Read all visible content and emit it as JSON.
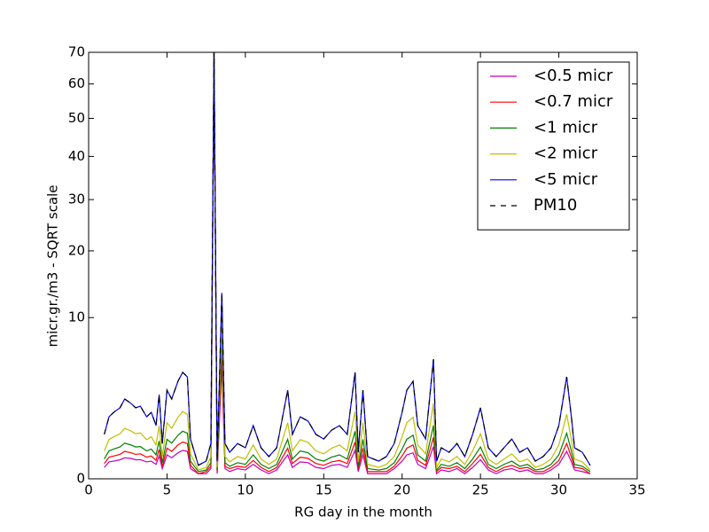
{
  "chart_data": {
    "type": "line",
    "xlabel": "RG day in the month",
    "ylabel": "micr.gr./m3 - SQRT scale",
    "yscale": "sqrt",
    "xlim": [
      0,
      35
    ],
    "xticks": [
      0,
      5,
      10,
      15,
      20,
      25,
      30,
      35
    ],
    "ylim": [
      0,
      70
    ],
    "yticks": [
      0,
      10,
      20,
      30,
      40,
      50,
      60,
      70
    ],
    "legend": "upper right",
    "x": [
      1,
      1.3,
      1.6,
      2,
      2.3,
      2.7,
      3,
      3.3,
      3.7,
      4,
      4.3,
      4.5,
      4.7,
      5,
      5.3,
      5.7,
      6,
      6.3,
      6.5,
      7,
      7.5,
      7.8,
      8,
      8.2,
      8.5,
      8.7,
      9,
      9.5,
      10,
      10.5,
      11,
      11.5,
      12,
      12.7,
      13,
      13.5,
      14,
      14.5,
      15,
      15.5,
      16,
      16.5,
      17,
      17.2,
      17.5,
      17.8,
      18.5,
      19,
      19.5,
      20,
      20.3,
      20.7,
      21,
      21.5,
      22,
      22.2,
      22.5,
      23,
      23.5,
      24,
      24.5,
      25,
      25.5,
      26,
      26.5,
      27,
      27.5,
      28,
      28.5,
      29,
      29.5,
      30,
      30.5,
      30.8,
      31,
      31.5,
      32
    ],
    "series": [
      {
        "name": "<0.5 micr",
        "color": "#bf00bf",
        "linestyle": "solid",
        "values": [
          0.05,
          0.11,
          0.12,
          0.14,
          0.17,
          0.16,
          0.14,
          0.14,
          0.11,
          0.12,
          0.08,
          0.2,
          0.04,
          0.22,
          0.17,
          0.26,
          0.31,
          0.29,
          0.04,
          0.01,
          0.01,
          0.04,
          70,
          0.01,
          5,
          0.04,
          0.02,
          0.04,
          0.03,
          0.08,
          0.03,
          0.01,
          0.03,
          0.22,
          0.05,
          0.11,
          0.1,
          0.05,
          0.04,
          0.07,
          0.08,
          0.05,
          0.31,
          0.02,
          0.22,
          0.01,
          0.01,
          0.01,
          0.04,
          0.12,
          0.22,
          0.26,
          0.08,
          0.04,
          0.4,
          0.01,
          0.03,
          0.02,
          0.04,
          0.01,
          0.05,
          0.14,
          0.03,
          0.01,
          0.03,
          0.04,
          0.02,
          0.03,
          0.01,
          0.01,
          0.03,
          0.08,
          0.29,
          0.11,
          0.03,
          0.02,
          0.01
        ]
      },
      {
        "name": "<0.7 micr",
        "color": "#ff0000",
        "linestyle": "solid",
        "values": [
          0.09,
          0.18,
          0.2,
          0.23,
          0.29,
          0.26,
          0.23,
          0.24,
          0.18,
          0.2,
          0.13,
          0.33,
          0.06,
          0.36,
          0.29,
          0.44,
          0.52,
          0.48,
          0.07,
          0.01,
          0.02,
          0.06,
          70,
          0.02,
          6,
          0.06,
          0.04,
          0.06,
          0.05,
          0.13,
          0.05,
          0.02,
          0.05,
          0.36,
          0.09,
          0.18,
          0.16,
          0.09,
          0.07,
          0.11,
          0.13,
          0.09,
          0.52,
          0.04,
          0.36,
          0.02,
          0.02,
          0.02,
          0.06,
          0.2,
          0.36,
          0.44,
          0.13,
          0.07,
          0.66,
          0.02,
          0.05,
          0.04,
          0.06,
          0.02,
          0.09,
          0.23,
          0.05,
          0.02,
          0.05,
          0.07,
          0.04,
          0.05,
          0.02,
          0.02,
          0.05,
          0.13,
          0.48,
          0.18,
          0.05,
          0.04,
          0.01
        ]
      },
      {
        "name": "<1 micr",
        "color": "#008000",
        "linestyle": "solid",
        "values": [
          0.15,
          0.3,
          0.34,
          0.39,
          0.49,
          0.44,
          0.39,
          0.4,
          0.3,
          0.34,
          0.22,
          0.55,
          0.1,
          0.6,
          0.49,
          0.73,
          0.87,
          0.8,
          0.12,
          0.02,
          0.03,
          0.1,
          70,
          0.03,
          8,
          0.1,
          0.06,
          0.1,
          0.08,
          0.22,
          0.08,
          0.04,
          0.08,
          0.6,
          0.15,
          0.3,
          0.26,
          0.15,
          0.12,
          0.18,
          0.22,
          0.15,
          0.87,
          0.06,
          0.6,
          0.04,
          0.03,
          0.04,
          0.1,
          0.34,
          0.6,
          0.73,
          0.22,
          0.12,
          1.1,
          0.03,
          0.08,
          0.06,
          0.1,
          0.04,
          0.15,
          0.39,
          0.08,
          0.04,
          0.08,
          0.12,
          0.06,
          0.08,
          0.03,
          0.04,
          0.08,
          0.22,
          0.8,
          0.3,
          0.08,
          0.06,
          0.02
        ]
      },
      {
        "name": "<2 micr",
        "color": "#bfbf00",
        "linestyle": "solid",
        "values": [
          0.3,
          0.59,
          0.68,
          0.78,
          0.98,
          0.88,
          0.78,
          0.81,
          0.59,
          0.68,
          0.44,
          1.09,
          0.19,
          1.21,
          0.98,
          1.46,
          1.74,
          1.6,
          0.24,
          0.03,
          0.05,
          0.19,
          70,
          0.05,
          10,
          0.19,
          0.11,
          0.19,
          0.15,
          0.44,
          0.15,
          0.08,
          0.15,
          1.21,
          0.3,
          0.59,
          0.51,
          0.3,
          0.24,
          0.36,
          0.44,
          0.3,
          1.74,
          0.11,
          1.21,
          0.08,
          0.05,
          0.08,
          0.19,
          0.68,
          1.21,
          1.46,
          0.44,
          0.24,
          2.2,
          0.05,
          0.15,
          0.11,
          0.19,
          0.08,
          0.3,
          0.78,
          0.15,
          0.08,
          0.15,
          0.24,
          0.11,
          0.15,
          0.05,
          0.08,
          0.15,
          0.44,
          1.6,
          0.59,
          0.15,
          0.11,
          0.03
        ]
      },
      {
        "name": "<5 micr",
        "color": "#0000ff",
        "linestyle": "solid",
        "values": [
          0.76,
          1.48,
          1.7,
          1.94,
          2.45,
          2.19,
          1.94,
          2.03,
          1.48,
          1.7,
          1.09,
          2.73,
          0.48,
          3.02,
          2.45,
          3.66,
          4.36,
          4.0,
          0.61,
          0.07,
          0.12,
          0.48,
          70,
          0.12,
          13.3,
          0.48,
          0.27,
          0.48,
          0.37,
          1.09,
          0.37,
          0.19,
          0.37,
          3.02,
          0.76,
          1.48,
          1.28,
          0.76,
          0.61,
          0.91,
          1.09,
          0.76,
          4.36,
          0.27,
          3.02,
          0.19,
          0.12,
          0.19,
          0.48,
          1.7,
          3.02,
          3.66,
          1.09,
          0.61,
          5.5,
          0.12,
          0.37,
          0.27,
          0.48,
          0.19,
          0.76,
          1.94,
          0.37,
          0.19,
          0.37,
          0.61,
          0.27,
          0.37,
          0.12,
          0.19,
          0.37,
          1.09,
          4.0,
          1.48,
          0.37,
          0.27,
          0.07
        ]
      },
      {
        "name": "PM10",
        "color": "#000000",
        "linestyle": "dashed",
        "values": [
          0.76,
          1.48,
          1.7,
          1.94,
          2.45,
          2.19,
          1.94,
          2.03,
          1.48,
          1.7,
          1.09,
          2.73,
          0.48,
          3.02,
          2.45,
          3.66,
          4.36,
          4.0,
          0.61,
          0.07,
          0.12,
          0.48,
          70,
          0.12,
          13.3,
          0.48,
          0.27,
          0.48,
          0.37,
          1.09,
          0.37,
          0.19,
          0.37,
          3.02,
          0.76,
          1.48,
          1.28,
          0.76,
          0.61,
          0.91,
          1.09,
          0.76,
          4.36,
          0.27,
          3.02,
          0.19,
          0.12,
          0.19,
          0.48,
          1.7,
          3.02,
          3.66,
          1.09,
          0.61,
          5.5,
          0.12,
          0.37,
          0.27,
          0.48,
          0.19,
          0.76,
          1.94,
          0.37,
          0.19,
          0.37,
          0.61,
          0.27,
          0.37,
          0.12,
          0.19,
          0.37,
          1.09,
          4.0,
          1.48,
          0.37,
          0.27,
          0.07
        ]
      }
    ]
  }
}
